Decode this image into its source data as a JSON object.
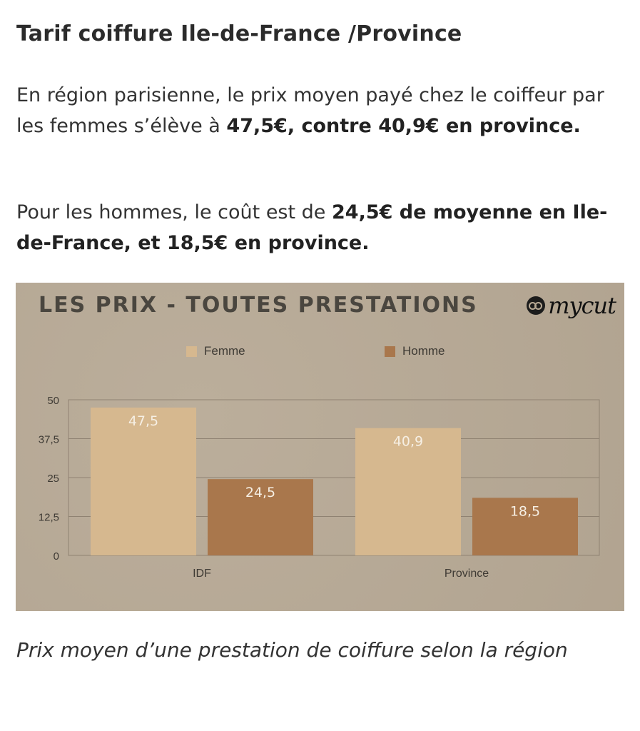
{
  "article": {
    "title": "Tarif coiffure Ile-de-France /Province",
    "p1": {
      "text": "En région parisienne, le prix moyen payé chez le coiffeur par les femmes s’élève à ",
      "bold": "47,5€, contre 40,9€ en province."
    },
    "p2": {
      "text": "Pour les hommes, le coût est de ",
      "bold": "24,5€ de moyenne en Ile-de-France, et 18,5€ en province."
    },
    "caption": "Prix moyen d’une prestation de coiffure selon la région"
  },
  "figure": {
    "logo_text": "mycut",
    "background": "#b7a995"
  },
  "chart_data": {
    "type": "bar",
    "title": "LES PRIX - TOUTES PRESTATIONS",
    "categories": [
      "IDF",
      "Province"
    ],
    "series": [
      {
        "name": "Femme",
        "values": [
          47.5,
          40.9
        ],
        "labels": [
          "47,5",
          "40,9"
        ],
        "color": "#d6b88f"
      },
      {
        "name": "Homme",
        "values": [
          24.5,
          18.5
        ],
        "labels": [
          "24,5",
          "18,5"
        ],
        "color": "#a9774c"
      }
    ],
    "yticks": [
      0,
      12.5,
      25,
      37.5,
      50
    ],
    "ytick_labels": [
      "0",
      "12,5",
      "25",
      "37,5",
      "50"
    ],
    "ylim": [
      0,
      50
    ],
    "grid": true,
    "legend": "top"
  }
}
